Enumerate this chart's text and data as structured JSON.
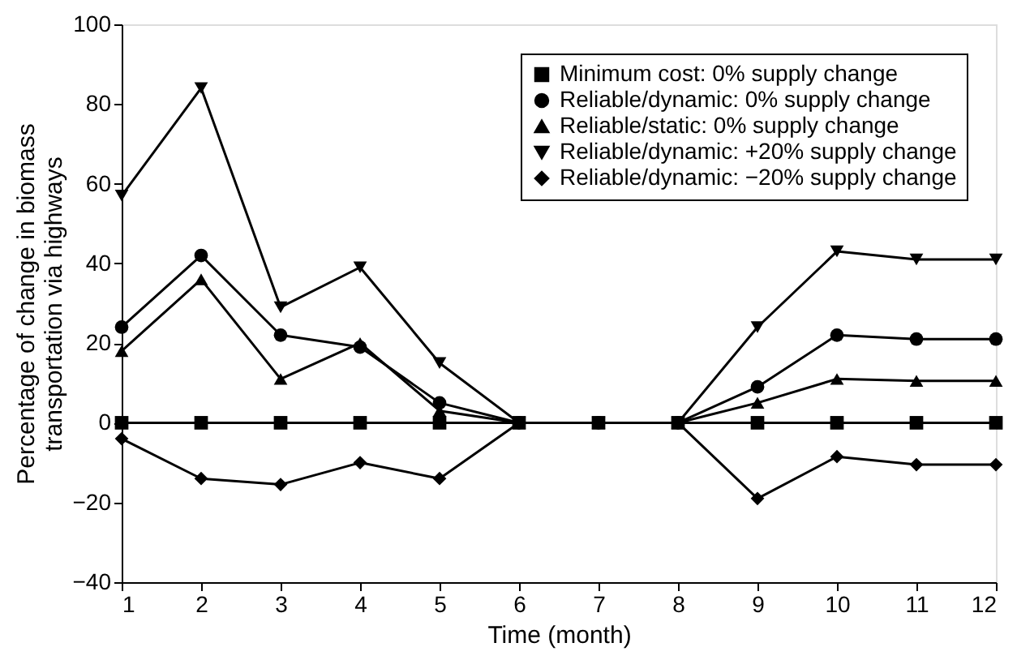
{
  "chart_data": {
    "type": "line",
    "xlabel": "Time (month)",
    "ylabel": "Percentage of change in biomass\ntransportation via highways",
    "x": [
      1,
      2,
      3,
      4,
      5,
      6,
      7,
      8,
      9,
      10,
      11,
      12
    ],
    "xlim": [
      1,
      12
    ],
    "xticks": [
      1,
      2,
      3,
      4,
      5,
      6,
      7,
      8,
      9,
      10,
      11,
      12
    ],
    "ylim": [
      -40,
      100
    ],
    "yticks": [
      -40,
      -20,
      0,
      20,
      40,
      60,
      80,
      100
    ],
    "grid": false,
    "legend": "top right",
    "line_style": "solid",
    "series": [
      {
        "name": "Minimum cost: 0% supply change",
        "color": "#000000",
        "marker": "square",
        "values": [
          0,
          0,
          0,
          0,
          0,
          0,
          0,
          0,
          0,
          0,
          0,
          0
        ]
      },
      {
        "name": "Reliable/dynamic: 0% supply change",
        "color": "#000000",
        "marker": "circle",
        "values": [
          24,
          42,
          22,
          19,
          5,
          0,
          0,
          0,
          9,
          22,
          21,
          21
        ]
      },
      {
        "name": "Reliable/static: 0% supply change",
        "color": "#000000",
        "marker": "triangle",
        "values": [
          18,
          36,
          11,
          20,
          3,
          0,
          0,
          0,
          5,
          11,
          10.5,
          10.5
        ]
      },
      {
        "name": "Reliable/dynamic: +20% supply change",
        "color": "#000000",
        "marker": "triangle-down",
        "values": [
          57,
          84,
          29,
          39,
          15,
          0,
          0,
          0,
          24,
          43,
          41,
          41
        ]
      },
      {
        "name": "Reliable/dynamic: −20% supply change",
        "color": "#000000",
        "marker": "diamond",
        "values": [
          -4,
          -14,
          -15.5,
          -10,
          -14,
          0,
          0,
          0,
          -19,
          -8.5,
          -10.5,
          -10.5
        ]
      }
    ]
  }
}
